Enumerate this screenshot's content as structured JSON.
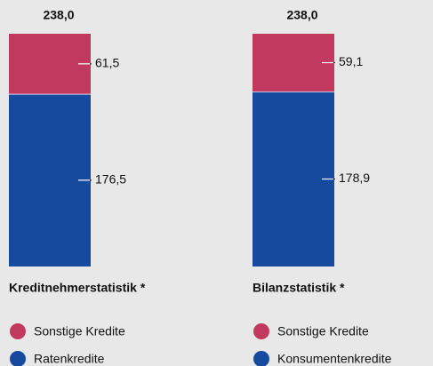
{
  "chart_data": [
    {
      "type": "bar",
      "stacked": true,
      "title": "Kreditnehmerstatistik *",
      "total": 238.0,
      "total_label": "238,0",
      "series": [
        {
          "name": "Sonstige Kredite",
          "color": "#c2395f",
          "values": [
            61.5
          ],
          "value_labels": [
            "61,5"
          ]
        },
        {
          "name": "Ratenkredite",
          "color": "#164a9f",
          "values": [
            176.5
          ],
          "value_labels": [
            "176,5"
          ]
        }
      ]
    },
    {
      "type": "bar",
      "stacked": true,
      "title": "Bilanzstatistik *",
      "total": 238.0,
      "total_label": "238,0",
      "series": [
        {
          "name": "Sonstige Kredite",
          "color": "#c2395f",
          "values": [
            59.1
          ],
          "value_labels": [
            "59,1"
          ]
        },
        {
          "name": "Konsumentenkredite",
          "color": "#164a9f",
          "values": [
            178.9
          ],
          "value_labels": [
            "178,9"
          ]
        }
      ]
    }
  ]
}
